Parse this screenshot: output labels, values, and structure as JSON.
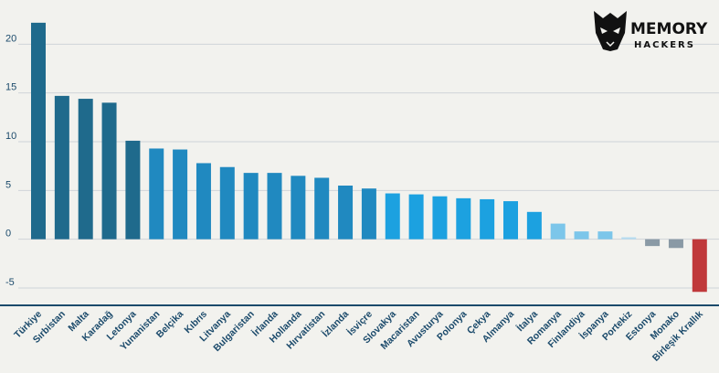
{
  "logo": {
    "line1": "MEMORY",
    "line2": "HACKERS"
  },
  "colors": {
    "background": "#f2f2ee",
    "gridline": "#cfd4d8",
    "axis": "#1b4a6b",
    "dark_blue": "#1f6a8c",
    "mid_blue": "#2089c0",
    "bright_blue": "#1ca1e0",
    "light_blue": "#7cc6ea",
    "pale_blue": "#b6dcf0",
    "gray": "#8a9aa5",
    "red": "#c0393b"
  },
  "chart_data": {
    "type": "bar",
    "title": "",
    "xlabel": "",
    "ylabel": "",
    "ylim": [
      -6.5,
      23.5
    ],
    "yticks": [
      -5,
      0,
      5,
      10,
      15,
      20
    ],
    "grid": true,
    "categories": [
      "Türkiye",
      "Sırbistan",
      "Malta",
      "Karadağ",
      "Letonya",
      "Yunanistan",
      "Belçika",
      "Kıbrıs",
      "Litvanya",
      "Bulgaristan",
      "İrlanda",
      "Hollanda",
      "Hırvatistan",
      "İzlanda",
      "İsviçre",
      "Slovakya",
      "Macaristan",
      "Avusturya",
      "Polonya",
      "Çekya",
      "Almanya",
      "İtalya",
      "Romanya",
      "Finlandiya",
      "İspanya",
      "Portekiz",
      "Estonya",
      "Monako",
      "Birleşik Krallık"
    ],
    "values": [
      22.2,
      14.7,
      14.4,
      14.0,
      10.1,
      9.3,
      9.2,
      7.8,
      7.4,
      6.8,
      6.8,
      6.5,
      6.3,
      5.5,
      5.2,
      4.7,
      4.6,
      4.4,
      4.2,
      4.1,
      3.9,
      2.8,
      1.6,
      0.8,
      0.8,
      0.2,
      -0.7,
      -0.9,
      -5.4
    ],
    "bar_colors": [
      "#1f6a8c",
      "#1f6a8c",
      "#1f6a8c",
      "#1f6a8c",
      "#1f6a8c",
      "#2089c0",
      "#2089c0",
      "#2089c0",
      "#2089c0",
      "#2089c0",
      "#2089c0",
      "#2089c0",
      "#2089c0",
      "#2089c0",
      "#2089c0",
      "#1ca1e0",
      "#1ca1e0",
      "#1ca1e0",
      "#1ca1e0",
      "#1ca1e0",
      "#1ca1e0",
      "#1ca1e0",
      "#7cc6ea",
      "#7cc6ea",
      "#7cc6ea",
      "#b6dcf0",
      "#8a9aa5",
      "#8a9aa5",
      "#c0393b"
    ]
  }
}
